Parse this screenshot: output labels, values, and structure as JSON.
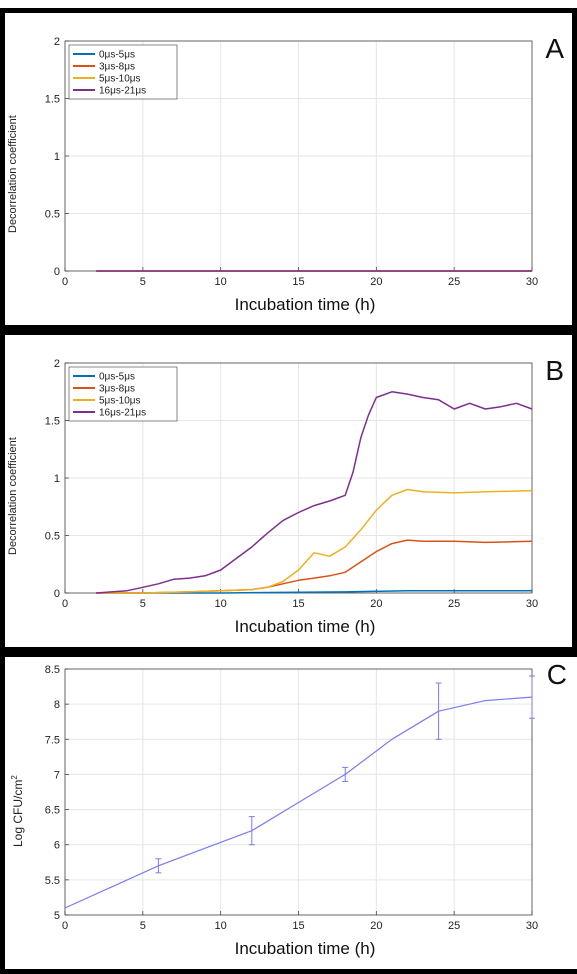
{
  "chart_data": [
    {
      "panel": "A",
      "type": "line",
      "ylabel": "Decorrelation coefficient",
      "xlabel": "Incubation time (h)",
      "xlim": [
        0,
        30
      ],
      "ylim": [
        0,
        2
      ],
      "xticks": [
        0,
        5,
        10,
        15,
        20,
        25,
        30
      ],
      "yticks": [
        0,
        0.5,
        1,
        1.5,
        2
      ],
      "ytick_labels": [
        "0",
        "0.5",
        "1",
        "1.5",
        "2"
      ],
      "grid": true,
      "legend_position": "top-left",
      "series": [
        {
          "name": "0μs-5μs",
          "color": "#0072BD",
          "x": [
            2,
            30
          ],
          "y": [
            0,
            0
          ]
        },
        {
          "name": "3μs-8μs",
          "color": "#D95319",
          "x": [
            2,
            30
          ],
          "y": [
            0,
            0
          ]
        },
        {
          "name": "5μs-10μs",
          "color": "#EDB120",
          "x": [
            2,
            30
          ],
          "y": [
            0,
            0
          ]
        },
        {
          "name": "16μs-21μs",
          "color": "#7E2F8E",
          "x": [
            2,
            30
          ],
          "y": [
            0,
            0
          ]
        }
      ]
    },
    {
      "panel": "B",
      "type": "line",
      "ylabel": "Decorrelation coefficient",
      "xlabel": "Incubation time (h)",
      "xlim": [
        0,
        30
      ],
      "ylim": [
        0,
        2
      ],
      "xticks": [
        0,
        5,
        10,
        15,
        20,
        25,
        30
      ],
      "yticks": [
        0,
        0.5,
        1,
        1.5,
        2
      ],
      "ytick_labels": [
        "0",
        "0.5",
        "1",
        "1.5",
        "2"
      ],
      "grid": true,
      "legend_position": "top-left",
      "series": [
        {
          "name": "0μs-5μs",
          "color": "#0072BD",
          "x": [
            2,
            5,
            10,
            14,
            18,
            20,
            22,
            25,
            30
          ],
          "y": [
            0,
            0,
            0,
            0.005,
            0.01,
            0.015,
            0.02,
            0.02,
            0.02
          ]
        },
        {
          "name": "3μs-8μs",
          "color": "#D95319",
          "x": [
            2,
            5,
            8,
            10,
            12,
            13,
            14,
            15,
            16,
            17,
            18,
            19,
            20,
            21,
            22,
            23,
            25,
            27,
            30
          ],
          "y": [
            0,
            0,
            0.01,
            0.02,
            0.03,
            0.05,
            0.08,
            0.11,
            0.13,
            0.15,
            0.18,
            0.27,
            0.36,
            0.43,
            0.46,
            0.45,
            0.45,
            0.44,
            0.45
          ]
        },
        {
          "name": "5μs-10μs",
          "color": "#EDB120",
          "x": [
            2,
            5,
            8,
            10,
            12,
            13,
            14,
            15,
            16,
            17,
            18,
            19,
            20,
            21,
            22,
            23,
            25,
            27,
            30
          ],
          "y": [
            0,
            0,
            0.01,
            0.02,
            0.03,
            0.05,
            0.1,
            0.2,
            0.35,
            0.32,
            0.4,
            0.55,
            0.72,
            0.85,
            0.9,
            0.88,
            0.87,
            0.88,
            0.89
          ]
        },
        {
          "name": "16μs-21μs",
          "color": "#7E2F8E",
          "x": [
            2,
            3,
            4,
            5,
            6,
            7,
            8,
            9,
            10,
            11,
            12,
            13,
            14,
            15,
            16,
            17,
            18,
            18.5,
            19,
            19.5,
            20,
            21,
            22,
            23,
            24,
            25,
            26,
            27,
            28,
            29,
            30
          ],
          "y": [
            0,
            0.01,
            0.02,
            0.05,
            0.08,
            0.12,
            0.13,
            0.15,
            0.2,
            0.3,
            0.4,
            0.52,
            0.63,
            0.7,
            0.76,
            0.8,
            0.85,
            1.05,
            1.35,
            1.55,
            1.7,
            1.75,
            1.73,
            1.7,
            1.68,
            1.6,
            1.65,
            1.6,
            1.62,
            1.65,
            1.6
          ]
        }
      ]
    },
    {
      "panel": "C",
      "type": "line",
      "ylabel": "Log CFU/cm",
      "ylabel_superscript": "2",
      "xlabel": "Incubation time (h)",
      "xlim": [
        0,
        30
      ],
      "ylim": [
        5,
        8.5
      ],
      "xticks": [
        0,
        5,
        10,
        15,
        20,
        25,
        30
      ],
      "yticks": [
        5,
        5.5,
        6,
        6.5,
        7,
        7.5,
        8,
        8.5
      ],
      "ytick_labels": [
        "5",
        "5.5",
        "6",
        "6.5",
        "7",
        "7.5",
        "8",
        "8.5"
      ],
      "grid": true,
      "series": [
        {
          "color": "#7B7BF0",
          "x": [
            0,
            3,
            6,
            9,
            12,
            15,
            18,
            21,
            24,
            27,
            30
          ],
          "y": [
            5.1,
            5.4,
            5.7,
            5.95,
            6.2,
            6.6,
            7.0,
            7.5,
            7.9,
            8.05,
            8.1
          ]
        }
      ],
      "error_bars": [
        {
          "x": 6,
          "y": 5.7,
          "err": 0.1
        },
        {
          "x": 12,
          "y": 6.2,
          "err": 0.2
        },
        {
          "x": 18,
          "y": 7.0,
          "err": 0.1
        },
        {
          "x": 24,
          "y": 7.9,
          "err": 0.4
        },
        {
          "x": 30,
          "y": 8.1,
          "err": 0.3
        }
      ]
    }
  ],
  "panels": {
    "A": {
      "letter": "A",
      "xlabel": "Incubation time (h)",
      "ylabel": "Decorrelation coefficient"
    },
    "B": {
      "letter": "B",
      "xlabel": "Incubation time (h)",
      "ylabel": "Decorrelation coefficient"
    },
    "C": {
      "letter": "C",
      "xlabel": "Incubation time (h)",
      "ylabel": "Log CFU/cm",
      "ylabel_sup": "2"
    }
  }
}
